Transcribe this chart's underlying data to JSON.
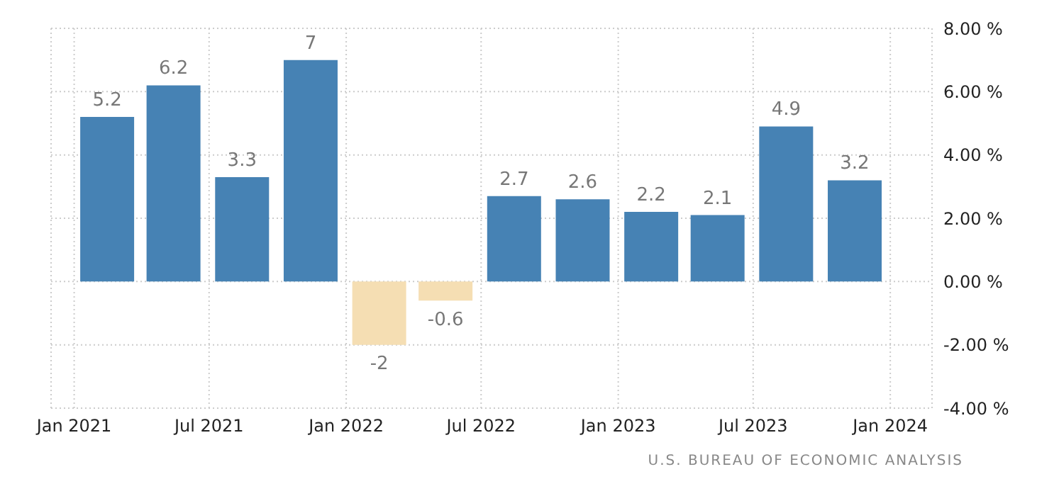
{
  "chart_data": {
    "type": "bar",
    "x": [
      "2021-02-15",
      "2021-05-15",
      "2021-08-15",
      "2021-11-15",
      "2022-02-15",
      "2022-05-15",
      "2022-08-15",
      "2022-11-15",
      "2023-02-15",
      "2023-05-15",
      "2023-08-15",
      "2023-11-15"
    ],
    "values": [
      5.2,
      6.2,
      3.3,
      7,
      -2,
      -0.6,
      2.7,
      2.6,
      2.2,
      2.1,
      4.9,
      3.2
    ],
    "colors": [
      "#4682b4",
      "#4682b4",
      "#4682b4",
      "#4682b4",
      "#f5deb3",
      "#f5deb3",
      "#4682b4",
      "#4682b4",
      "#4682b4",
      "#4682b4",
      "#4682b4",
      "#4682b4"
    ],
    "data_labels": true,
    "xlim": [
      "2020-12-01",
      "2024-02-26"
    ],
    "xticks": [
      {
        "value": "2021-01-01",
        "label": "Jan 2021"
      },
      {
        "value": "2021-07-01",
        "label": "Jul 2021"
      },
      {
        "value": "2022-01-01",
        "label": "Jan 2022"
      },
      {
        "value": "2022-07-01",
        "label": "Jul 2022"
      },
      {
        "value": "2023-01-01",
        "label": "Jan 2023"
      },
      {
        "value": "2023-07-01",
        "label": "Jul 2023"
      },
      {
        "value": "2024-01-01",
        "label": "Jan 2024"
      }
    ],
    "ylim": [
      -4,
      8
    ],
    "yticks": [
      {
        "value": -4,
        "label": "-4.00 %"
      },
      {
        "value": -2,
        "label": "-2.00 %"
      },
      {
        "value": 0,
        "label": "0.00 %"
      },
      {
        "value": 2,
        "label": "2.00 %"
      },
      {
        "value": 4,
        "label": "4.00 %"
      },
      {
        "value": 6,
        "label": "6.00 %"
      },
      {
        "value": 8,
        "label": "8.00 %"
      }
    ],
    "grid": true,
    "legend": false,
    "annotations": [
      "U.S. BUREAU OF ECONOMIC ANALYSIS"
    ]
  }
}
